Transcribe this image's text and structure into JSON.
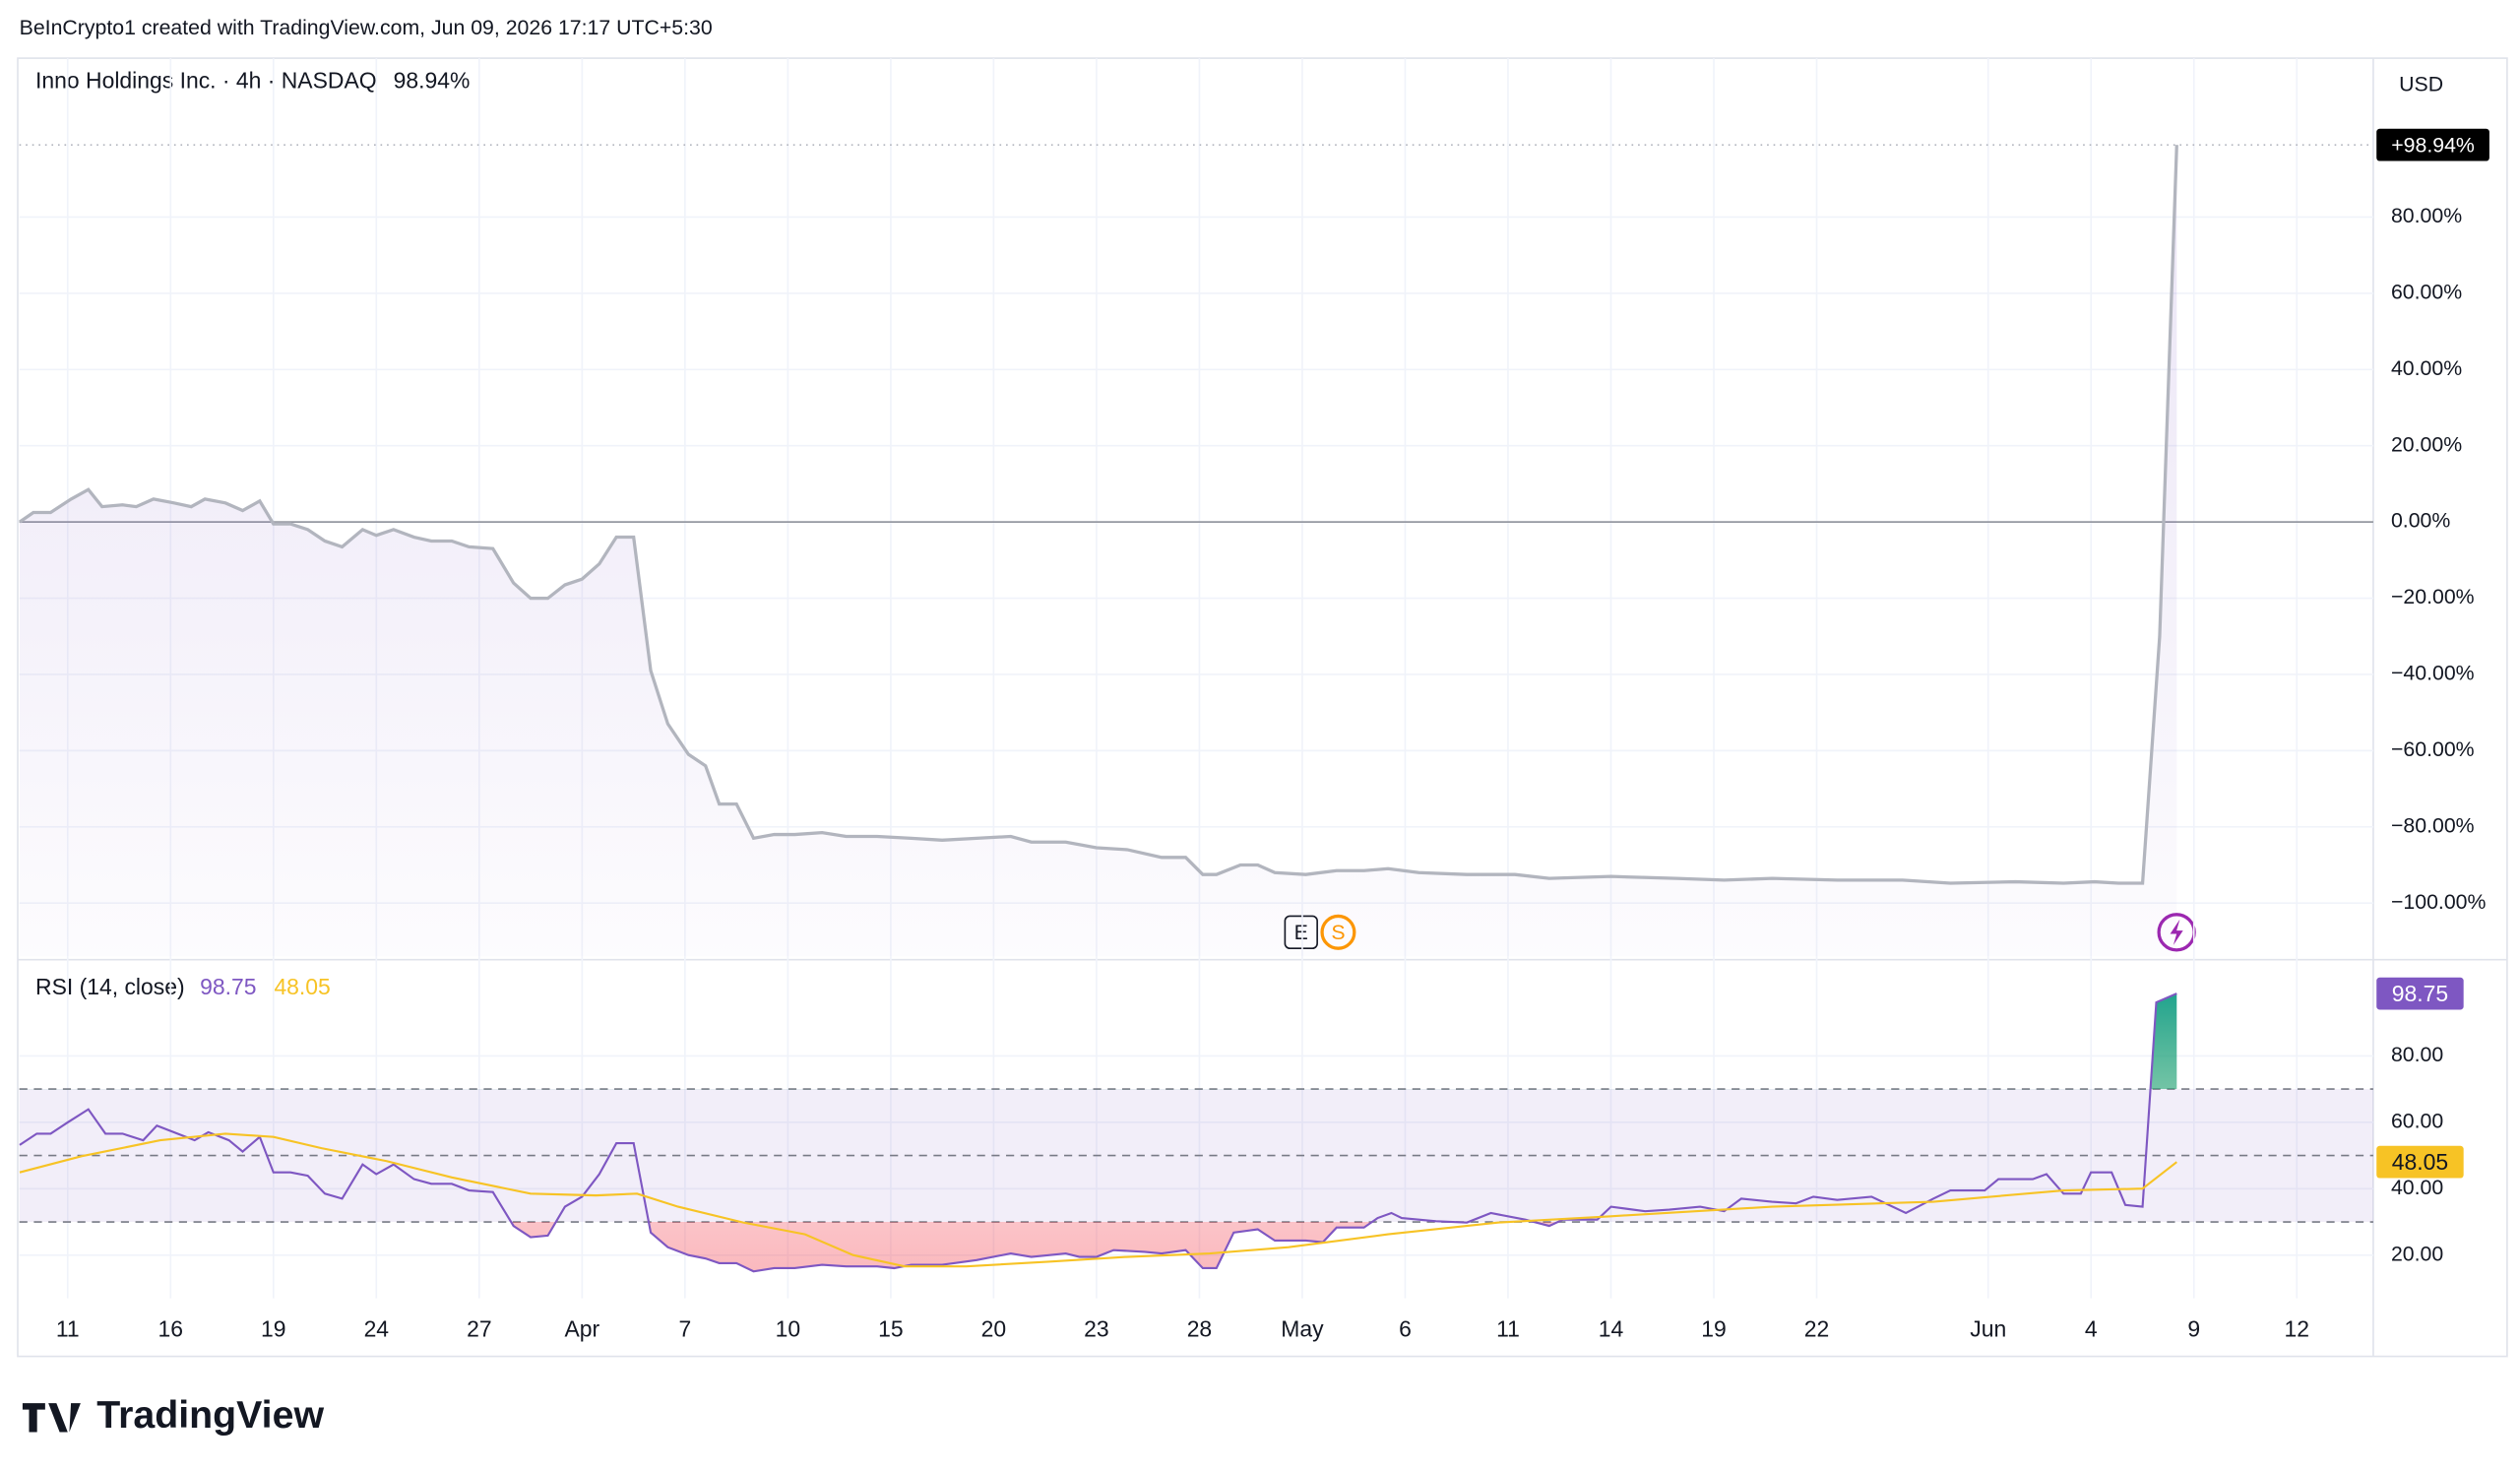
{
  "header": {
    "credit": "BeInCrypto1 created with TradingView.com, Jun 09, 2026 17:17 UTC+5:30",
    "currency": "USD",
    "brand": "TradingView"
  },
  "chart_data": [
    {
      "type": "line",
      "title": "Inno Holdings Inc. · 4h · NASDAQ",
      "legend_value_label": "98.94%",
      "axis_value_label": "+98.94%",
      "event_markers": [
        "E",
        "S"
      ],
      "xlim": [
        -1.41,
        67.23
      ],
      "ylim": [
        -114,
        120
      ],
      "yticks": [
        {
          "value": -100,
          "label": "−100.00%"
        },
        {
          "value": -80,
          "label": "−80.00%"
        },
        {
          "value": -60,
          "label": "−60.00%"
        },
        {
          "value": -40,
          "label": "−40.00%"
        },
        {
          "value": -20,
          "label": "−20.00%"
        },
        {
          "value": 0,
          "label": "0.00%"
        },
        {
          "value": 20,
          "label": "20.00%"
        },
        {
          "value": 40,
          "label": "40.00%"
        },
        {
          "value": 60,
          "label": "60.00%"
        },
        {
          "value": 80,
          "label": "80.00%"
        }
      ],
      "grid": true,
      "series": [
        {
          "color": "#b2b5be",
          "x": [
            -1.4,
            -1.0,
            -0.5,
            0.1,
            0.6,
            1.0,
            1.6,
            2.0,
            2.5,
            3.1,
            3.6,
            4.0,
            4.6,
            5.1,
            5.6,
            6.0,
            6.5,
            7.0,
            7.5,
            8.0,
            8.6,
            9.0,
            9.5,
            10.1,
            10.6,
            11.2,
            11.7,
            12.4,
            13.0,
            13.5,
            14.0,
            14.5,
            15.0,
            15.5,
            16.0,
            16.5,
            17.0,
            17.5,
            18.1,
            18.6,
            19.0,
            19.5,
            20.0,
            20.6,
            21.2,
            22.0,
            22.7,
            23.6,
            24.6,
            25.5,
            26.5,
            27.5,
            28.1,
            29.1,
            30.0,
            30.9,
            31.9,
            32.6,
            33.1,
            33.5,
            34.2,
            34.7,
            35.2,
            36.1,
            37.0,
            37.8,
            38.5,
            39.4,
            40.8,
            42.2,
            43.2,
            45.0,
            46.9,
            48.3,
            49.7,
            51.6,
            53.5,
            54.9,
            56.8,
            58.2,
            59.1,
            59.8,
            60.5,
            61.0,
            61.5
          ],
          "values": [
            0,
            2.5,
            2.5,
            6,
            8.5,
            4,
            4.5,
            4,
            6,
            5,
            4,
            6,
            5,
            3,
            5.5,
            -0.5,
            -0.5,
            -2,
            -5,
            -6.5,
            -2,
            -3.5,
            -2,
            -4,
            -5,
            -5,
            -6.5,
            -7,
            -16,
            -20,
            -20,
            -16.5,
            -15,
            -11,
            -4,
            -4,
            -39,
            -53,
            -61,
            -64,
            -74,
            -74,
            -83,
            -82,
            -82,
            -81.5,
            -82.5,
            -82.5,
            -83,
            -83.5,
            -83,
            -82.5,
            -84,
            -84,
            -85.5,
            -86,
            -88,
            -88,
            -92.5,
            -92.5,
            -90,
            -90,
            -92,
            -92.5,
            -91.5,
            -91.5,
            -91,
            -92,
            -92.5,
            -92.5,
            -93.5,
            -93,
            -93.5,
            -94,
            -93.5,
            -94,
            -94,
            -94.8,
            -94.4,
            -94.8,
            -94.4,
            -94.8,
            -94.8,
            -30,
            98.94
          ]
        }
      ]
    },
    {
      "type": "line",
      "title": "RSI (14, close)",
      "xlim": [
        -1.41,
        67.23
      ],
      "ylim": [
        7,
        108
      ],
      "xticks": [
        {
          "value": 0,
          "label": "11"
        },
        {
          "value": 3,
          "label": "16"
        },
        {
          "value": 6,
          "label": "19"
        },
        {
          "value": 9,
          "label": "24"
        },
        {
          "value": 12,
          "label": "27"
        },
        {
          "value": 15,
          "label": "Apr"
        },
        {
          "value": 18,
          "label": "7"
        },
        {
          "value": 21,
          "label": "10"
        },
        {
          "value": 24,
          "label": "15"
        },
        {
          "value": 27,
          "label": "20"
        },
        {
          "value": 30,
          "label": "23"
        },
        {
          "value": 33,
          "label": "28"
        },
        {
          "value": 36,
          "label": "May"
        },
        {
          "value": 39,
          "label": "6"
        },
        {
          "value": 42,
          "label": "11"
        },
        {
          "value": 45,
          "label": "14"
        },
        {
          "value": 48,
          "label": "19"
        },
        {
          "value": 51,
          "label": "22"
        },
        {
          "value": 56,
          "label": "Jun"
        },
        {
          "value": 59,
          "label": "4"
        },
        {
          "value": 62,
          "label": "9"
        },
        {
          "value": 65,
          "label": "12"
        }
      ],
      "yticks": [
        {
          "value": 20,
          "label": "20.00"
        },
        {
          "value": 40,
          "label": "40.00"
        },
        {
          "value": 60,
          "label": "60.00"
        },
        {
          "value": 80,
          "label": "80.00"
        }
      ],
      "bands": [
        30,
        50,
        70
      ],
      "grid": true,
      "series": [
        {
          "color": "#7e57c2",
          "x": [
            -1.4,
            -0.9,
            -0.5,
            0,
            0.6,
            1.1,
            1.6,
            2.2,
            2.6,
            3.2,
            3.7,
            4.1,
            4.7,
            5.1,
            5.6,
            6.0,
            6.5,
            7.0,
            7.5,
            8.0,
            8.6,
            9.0,
            9.5,
            10.1,
            10.6,
            11.2,
            11.7,
            12.4,
            13.0,
            13.5,
            14.0,
            14.5,
            15.0,
            15.5,
            16.0,
            16.5,
            17.0,
            17.5,
            18.1,
            18.6,
            19.0,
            19.5,
            20.0,
            20.6,
            21.2,
            22.0,
            22.7,
            23.6,
            24.1,
            24.6,
            25.5,
            26.5,
            27.5,
            28.1,
            29.1,
            29.5,
            30.0,
            30.5,
            31.4,
            31.9,
            32.6,
            33.1,
            33.5,
            34.0,
            34.7,
            35.2,
            36.1,
            36.6,
            37.0,
            37.8,
            38.2,
            38.6,
            38.9,
            39.9,
            40.8,
            41.5,
            42.5,
            43.2,
            43.6,
            44.6,
            45.0,
            46.0,
            46.7,
            47.6,
            48.3,
            48.8,
            49.7,
            50.4,
            50.9,
            51.6,
            52.6,
            53.6,
            54.4,
            54.9,
            55.9,
            56.3,
            57.3,
            57.7,
            58.2,
            58.7,
            59.0,
            59.6,
            60.0,
            60.5,
            60.9,
            61.5
          ],
          "values": [
            53.2,
            56.6,
            56.6,
            60,
            63.9,
            56.6,
            56.6,
            54.6,
            59,
            56.6,
            54.6,
            57,
            54.6,
            51.2,
            55.6,
            44.9,
            44.9,
            43.9,
            38.5,
            37,
            47.3,
            44.4,
            47.3,
            42.9,
            41.5,
            41.5,
            39.5,
            39,
            28.8,
            25.4,
            25.9,
            34.6,
            37.6,
            44.4,
            53.7,
            53.7,
            26.8,
            22.4,
            20,
            19,
            17.6,
            17.6,
            15.1,
            16.1,
            16.1,
            17.1,
            16.6,
            16.6,
            16.1,
            17.1,
            17.1,
            18.5,
            20.5,
            19.5,
            20.5,
            19.5,
            19.5,
            21.5,
            21,
            20.5,
            21.5,
            16.1,
            16.1,
            26.8,
            27.8,
            24.4,
            24.4,
            23.9,
            28.3,
            28.3,
            31.2,
            32.7,
            31.2,
            30.2,
            29.8,
            32.7,
            30.7,
            28.8,
            30.7,
            30.7,
            34.6,
            33.2,
            33.7,
            34.6,
            33.2,
            37,
            36.1,
            35.6,
            37.6,
            36.6,
            37.6,
            32.7,
            37,
            39.5,
            39.5,
            42.9,
            42.9,
            44.4,
            38.5,
            38.5,
            44.9,
            44.9,
            35.1,
            34.6,
            96.1,
            98.75
          ]
        },
        {
          "color": "#f7c325",
          "x": [
            -1.4,
            0.4,
            2.7,
            4.6,
            6.0,
            7.4,
            9.3,
            11.2,
            13.5,
            15.4,
            16.6,
            17.8,
            19.7,
            21.5,
            22.9,
            24.4,
            26.2,
            28.6,
            30.9,
            33.3,
            35.6,
            38.5,
            41.7,
            45.0,
            49.7,
            54.4,
            58.2,
            60.5,
            61.5
          ],
          "values": [
            44.9,
            49.8,
            54.6,
            56.6,
            55.6,
            52.2,
            48.3,
            43.4,
            38.5,
            38,
            38.5,
            34.6,
            29.8,
            26.3,
            20,
            16.6,
            16.6,
            18,
            19.5,
            20.5,
            22.4,
            26.3,
            29.8,
            31.7,
            34.6,
            36.1,
            39.5,
            40,
            48.05
          ]
        }
      ]
    }
  ]
}
